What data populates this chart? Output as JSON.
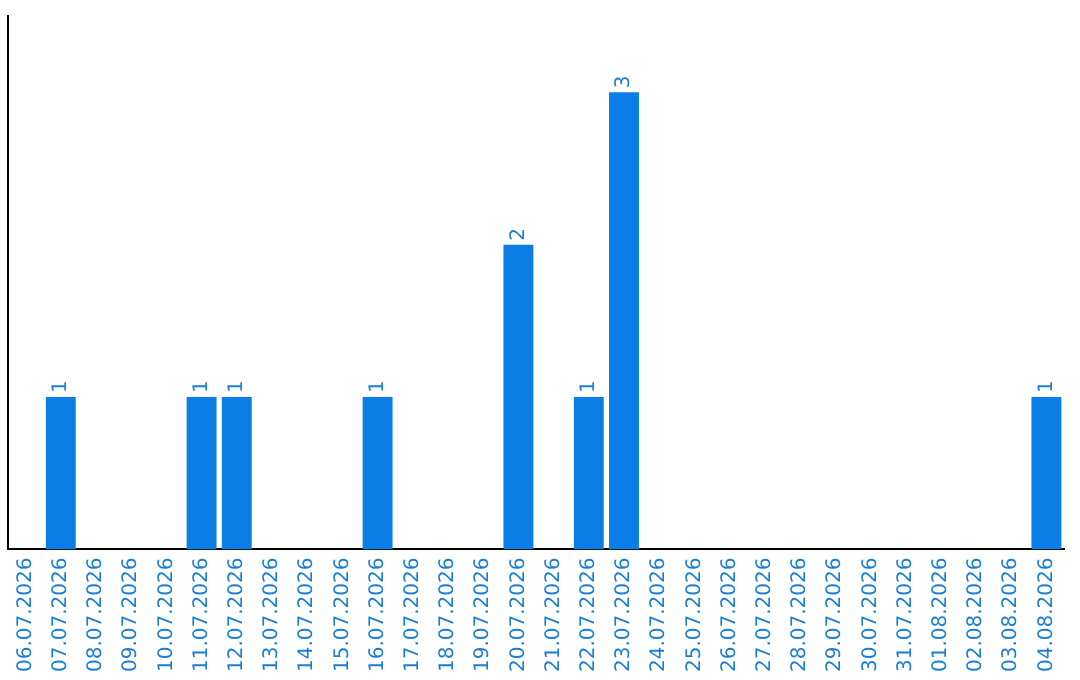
{
  "chart_data": {
    "type": "bar",
    "categories": [
      "06.07.2026",
      "07.07.2026",
      "08.07.2026",
      "09.07.2026",
      "10.07.2026",
      "11.07.2026",
      "12.07.2026",
      "13.07.2026",
      "14.07.2026",
      "15.07.2026",
      "16.07.2026",
      "17.07.2026",
      "18.07.2026",
      "19.07.2026",
      "20.07.2026",
      "21.07.2026",
      "22.07.2026",
      "23.07.2026",
      "24.07.2026",
      "25.07.2026",
      "26.07.2026",
      "27.07.2026",
      "28.07.2026",
      "29.07.2026",
      "30.07.2026",
      "31.07.2026",
      "01.08.2026",
      "02.08.2026",
      "03.08.2026",
      "04.08.2026"
    ],
    "values": [
      0,
      1,
      0,
      0,
      0,
      1,
      1,
      0,
      0,
      0,
      1,
      0,
      0,
      0,
      2,
      0,
      1,
      3,
      0,
      0,
      0,
      0,
      0,
      0,
      0,
      0,
      0,
      0,
      0,
      1
    ],
    "value_labels": [
      null,
      "1",
      null,
      null,
      null,
      "1",
      "1",
      null,
      null,
      null,
      "1",
      null,
      null,
      null,
      "2",
      null,
      "1",
      "3",
      null,
      null,
      null,
      null,
      null,
      null,
      null,
      null,
      null,
      null,
      null,
      "1"
    ],
    "color": "#0a7ee6",
    "grid": false,
    "legend": false,
    "tick_labels": "x"
  }
}
